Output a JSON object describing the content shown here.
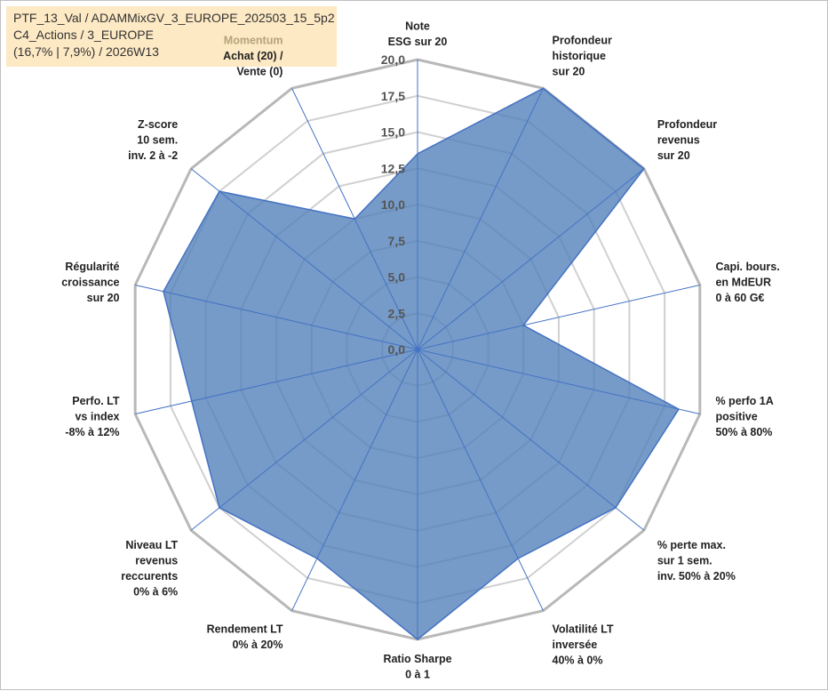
{
  "header": {
    "line1": "PTF_13_Val / ADAMMixGV_3_EUROPE_202503_15_5p2",
    "line2": "C4_Actions / 3_EUROPE",
    "line3": "(16,7% | 7,9%) / 2026W13"
  },
  "chart_data": {
    "type": "radar",
    "rmax": 20,
    "ticks": [
      "0,0",
      "2,5",
      "5,0",
      "7,5",
      "10,0",
      "12,5",
      "15,0",
      "17,5",
      "20,0"
    ],
    "tick_values": [
      0,
      2.5,
      5,
      7.5,
      10,
      12.5,
      15,
      17.5,
      20
    ],
    "axes": [
      {
        "lines": [
          "Note",
          "ESG sur 20"
        ],
        "value": 13.5
      },
      {
        "lines": [
          "Profondeur",
          "historique",
          "sur 20"
        ],
        "value": 20
      },
      {
        "lines": [
          "Profondeur",
          "revenus",
          "sur 20"
        ],
        "value": 20
      },
      {
        "lines": [
          "Capi. bours.",
          "en MdEUR",
          "0 à 60 G€"
        ],
        "value": 7.5
      },
      {
        "lines": [
          "% perfo 1A",
          "positive",
          "50% à 80%"
        ],
        "value": 18.5
      },
      {
        "lines": [
          "% perte max.",
          "sur 1 sem.",
          "inv. 50% à 20%"
        ],
        "value": 17.5
      },
      {
        "lines": [
          "Volatilité LT",
          "inversée",
          "40% à 0%"
        ],
        "value": 16
      },
      {
        "lines": [
          "Ratio Sharpe",
          "0 à 1"
        ],
        "value": 20
      },
      {
        "lines": [
          "Rendement LT",
          "0% à 20%"
        ],
        "value": 16
      },
      {
        "lines": [
          "Niveau LT",
          "revenus",
          "reccurents",
          "0% à 6%"
        ],
        "value": 17.5
      },
      {
        "lines": [
          "Perfo. LT",
          "vs index",
          "-8% à 12%"
        ],
        "value": 16
      },
      {
        "lines": [
          "Régularité",
          "croissance",
          "sur 20"
        ],
        "value": 18
      },
      {
        "lines": [
          "Z-score",
          "10 sem.",
          "inv. 2 à -2"
        ],
        "value": 17.5
      },
      {
        "lines": [
          "Momentum",
          "Achat (20) /",
          "Vente (0)"
        ],
        "value": 10
      }
    ],
    "fill_color": "#4f7fb8",
    "line_color": "#4472c4",
    "grid_color": "#d0d0d0",
    "grid_outer_color": "#b8b8b8",
    "momentum_color": "#b3a37a"
  }
}
